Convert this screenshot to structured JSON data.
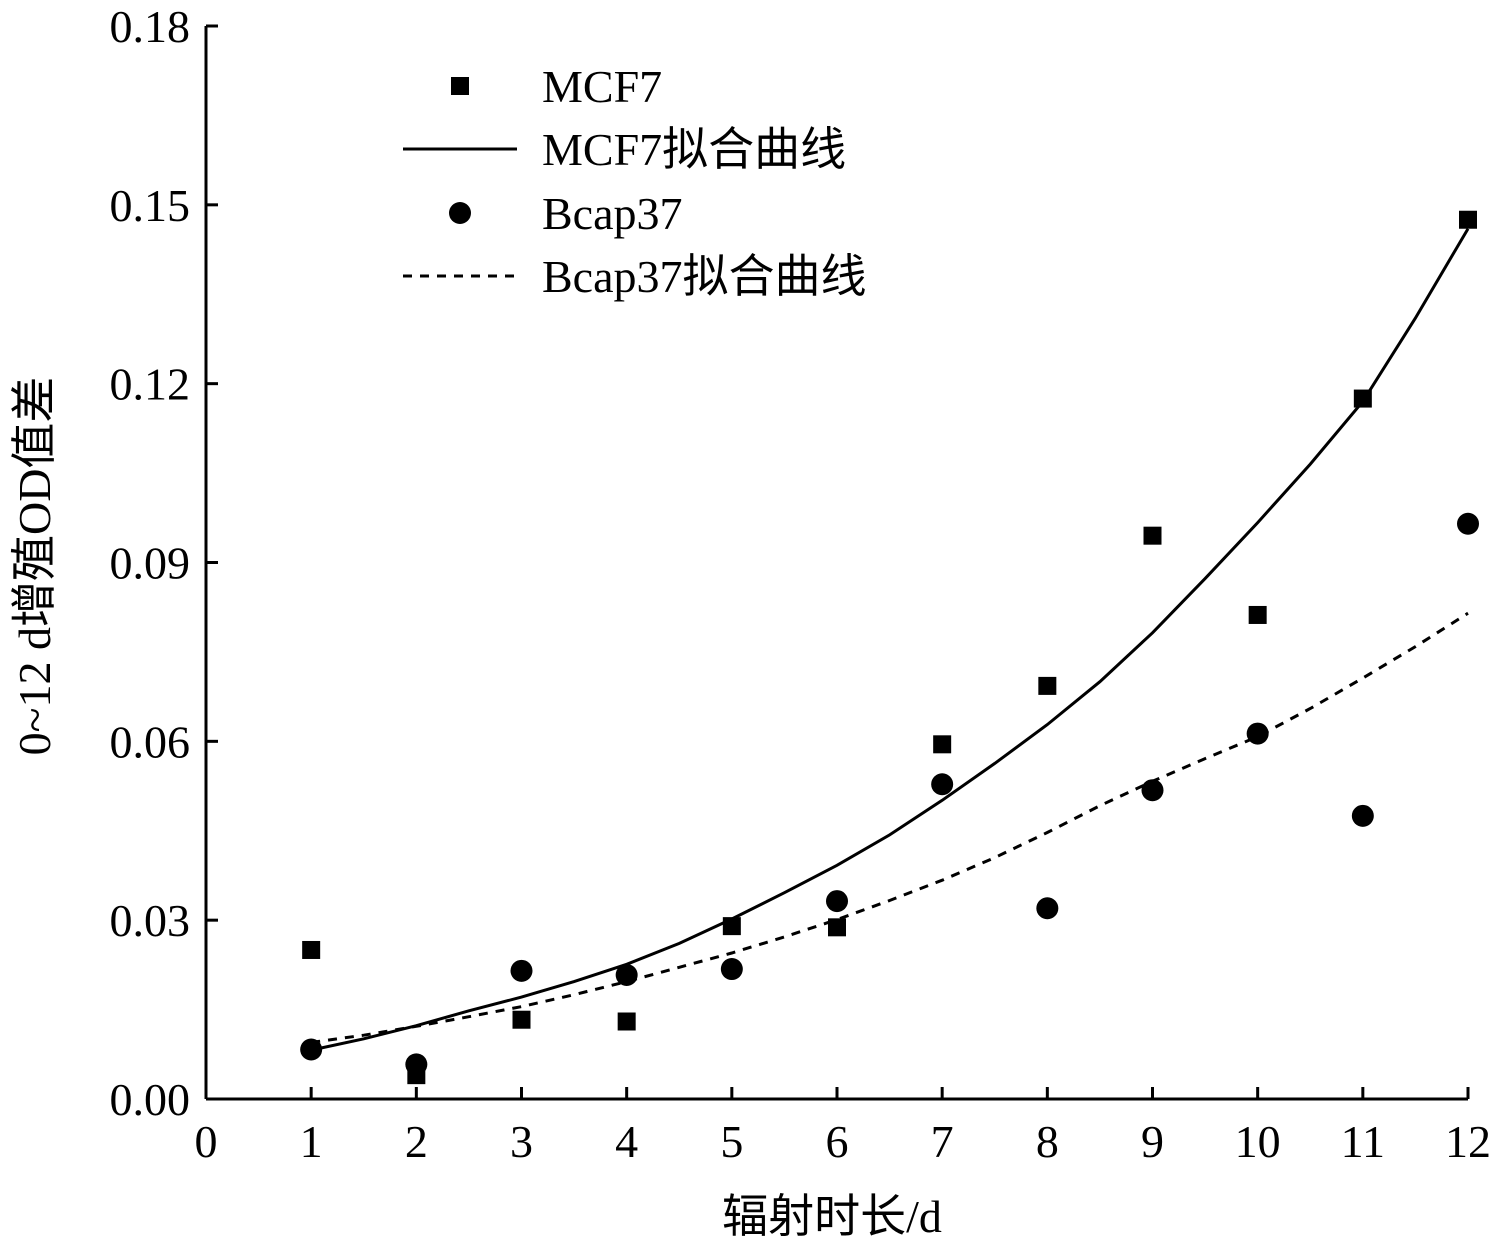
{
  "chart_data": {
    "type": "scatter",
    "title": "",
    "xlabel": "辐射时长/d",
    "ylabel": "0~12 d增殖OD值差",
    "xlim": [
      0,
      12
    ],
    "ylim": [
      0,
      0.18
    ],
    "xticks": [
      "0",
      "1",
      "2",
      "3",
      "4",
      "5",
      "6",
      "7",
      "8",
      "9",
      "10",
      "11",
      "12"
    ],
    "yticks": [
      "0.00",
      "0.03",
      "0.06",
      "0.09",
      "0.12",
      "0.15",
      "0.18"
    ],
    "grid": false,
    "legend_position": "top-left",
    "legend": [
      {
        "label": "MCF7",
        "marker": "square"
      },
      {
        "label": "MCF7拟合曲线",
        "line": "solid"
      },
      {
        "label": "Bcap37",
        "marker": "circle"
      },
      {
        "label": "Bcap37拟合曲线",
        "line": "dashed"
      }
    ],
    "series": [
      {
        "name": "MCF7",
        "kind": "scatter",
        "marker": "square",
        "x": [
          1,
          2,
          3,
          4,
          5,
          6,
          7,
          8,
          9,
          10,
          11,
          12
        ],
        "y": [
          0.025,
          0.004,
          0.0133,
          0.013,
          0.029,
          0.0288,
          0.0595,
          0.0693,
          0.0945,
          0.0812,
          0.1175,
          0.1475
        ]
      },
      {
        "name": "MCF7拟合曲线",
        "kind": "line",
        "style": "solid",
        "x": [
          1,
          1.5,
          2,
          2.5,
          3,
          3.5,
          4,
          4.5,
          5,
          5.5,
          6,
          6.5,
          7,
          7.5,
          8,
          8.5,
          9,
          9.5,
          10,
          10.5,
          11,
          11.5,
          12
        ],
        "y": [
          0.0082,
          0.0101,
          0.0123,
          0.0148,
          0.0171,
          0.0197,
          0.0226,
          0.0261,
          0.0302,
          0.0346,
          0.0392,
          0.0443,
          0.0501,
          0.0563,
          0.0628,
          0.07,
          0.0782,
          0.0873,
          0.0967,
          0.1065,
          0.117,
          0.131,
          0.146
        ]
      },
      {
        "name": "Bcap37",
        "kind": "scatter",
        "marker": "circle",
        "x": [
          1,
          2,
          3,
          4,
          5,
          6,
          7,
          8,
          9,
          10,
          11,
          12
        ],
        "y": [
          0.0083,
          0.0058,
          0.0215,
          0.0208,
          0.0218,
          0.0332,
          0.0528,
          0.032,
          0.0518,
          0.0613,
          0.0475,
          0.0965
        ]
      },
      {
        "name": "Bcap37拟合曲线",
        "kind": "line",
        "style": "dashed",
        "x": [
          1,
          1.5,
          2,
          2.5,
          3,
          3.5,
          4,
          4.5,
          5,
          5.5,
          6,
          6.5,
          7,
          7.5,
          8,
          8.5,
          9,
          9.5,
          10,
          10.5,
          11,
          11.5,
          12
        ],
        "y": [
          0.0095,
          0.0107,
          0.0122,
          0.0138,
          0.0155,
          0.0175,
          0.0197,
          0.0221,
          0.0245,
          0.0272,
          0.0301,
          0.0333,
          0.0367,
          0.0405,
          0.0447,
          0.0492,
          0.0533,
          0.0571,
          0.0608,
          0.0655,
          0.0706,
          0.0759,
          0.0815
        ]
      }
    ]
  }
}
